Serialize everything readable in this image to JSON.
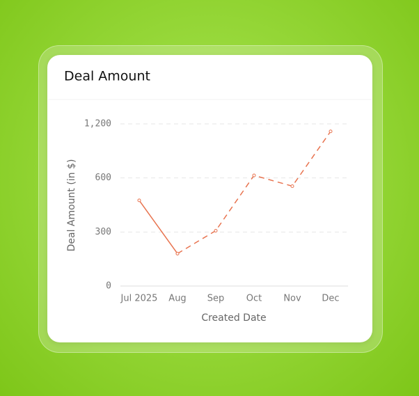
{
  "chart_data": {
    "type": "line",
    "title": "Deal Amount",
    "x_label": "Created Date",
    "y_label": "Deal Amount (in $)",
    "categories": [
      "Jul 2025",
      "Aug",
      "Sep",
      "Oct",
      "Nov",
      "Dec"
    ],
    "series": [
      {
        "color": "#e8734f",
        "dash": false,
        "values": [
          450,
          180,
          null,
          null,
          null,
          null
        ]
      },
      {
        "color": "#e8734f",
        "dash": true,
        "values": [
          null,
          180,
          305,
          620,
          540,
          1090
        ]
      }
    ],
    "yscale": {
      "type": "symlog",
      "linthresh": 300,
      "base": 2
    },
    "ylim": [
      0,
      1200
    ],
    "yticks": [
      0,
      300,
      600,
      {
        "value": 1200,
        "label": "1,200"
      }
    ],
    "grid": true
  }
}
